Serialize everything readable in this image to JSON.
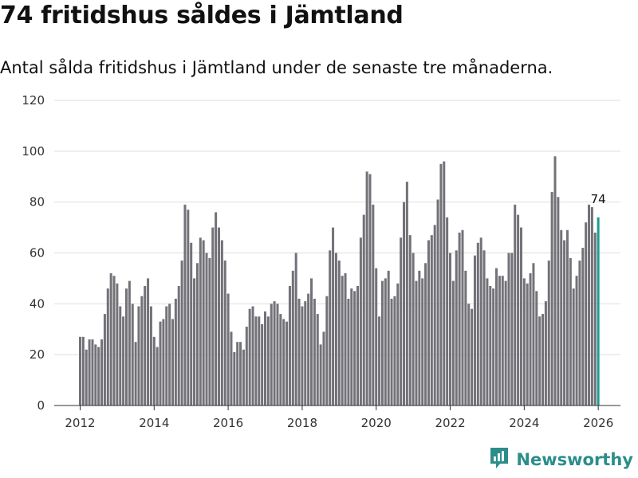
{
  "header": {
    "title": "74 fritidshus såldes i Jämtland",
    "subtitle": "Antal sålda fritidshus i Jämtland under de senaste tre månaderna."
  },
  "brand": {
    "name": "Newsworthy",
    "color": "#2b8e8a"
  },
  "chart_data": {
    "type": "bar",
    "title": "74 fritidshus såldes i Jämtland",
    "subtitle": "Antal sålda fritidshus i Jämtland under de senaste tre månaderna.",
    "xlabel": "",
    "ylabel": "",
    "ylim": [
      0,
      120
    ],
    "yticks": [
      0,
      20,
      40,
      60,
      80,
      100,
      120
    ],
    "xticks": [
      2012,
      2014,
      2016,
      2018,
      2020,
      2022,
      2024,
      2026
    ],
    "xlim": [
      2011.3,
      2026.6
    ],
    "x_start": 2012.0,
    "x_step": 0.08333,
    "bar_color": "#737278",
    "highlight_color": "#1e9a90",
    "highlight_label": "74",
    "values": [
      27,
      27,
      22,
      26,
      26,
      24,
      23,
      26,
      36,
      46,
      52,
      51,
      48,
      39,
      35,
      46,
      49,
      40,
      25,
      39,
      43,
      47,
      50,
      39,
      27,
      23,
      33,
      34,
      39,
      40,
      34,
      42,
      47,
      57,
      79,
      77,
      64,
      50,
      56,
      66,
      65,
      60,
      58,
      70,
      76,
      70,
      65,
      57,
      44,
      29,
      21,
      25,
      25,
      22,
      31,
      38,
      39,
      35,
      35,
      32,
      37,
      35,
      40,
      41,
      40,
      36,
      34,
      33,
      47,
      53,
      60,
      42,
      39,
      41,
      44,
      50,
      42,
      36,
      24,
      29,
      43,
      61,
      70,
      60,
      57,
      51,
      52,
      42,
      46,
      45,
      47,
      66,
      75,
      92,
      91,
      79,
      54,
      35,
      49,
      50,
      53,
      42,
      43,
      48,
      66,
      80,
      88,
      67,
      60,
      49,
      53,
      50,
      56,
      65,
      67,
      71,
      81,
      95,
      96,
      74,
      60,
      49,
      61,
      68,
      69,
      53,
      40,
      38,
      59,
      64,
      66,
      61,
      50,
      47,
      46,
      54,
      51,
      51,
      49,
      60,
      60,
      79,
      75,
      70,
      50,
      48,
      52,
      56,
      45,
      35,
      36,
      41,
      57,
      84,
      98,
      82,
      69,
      65,
      69,
      58,
      46,
      51,
      57,
      62,
      72,
      79,
      78,
      68,
      74
    ]
  }
}
